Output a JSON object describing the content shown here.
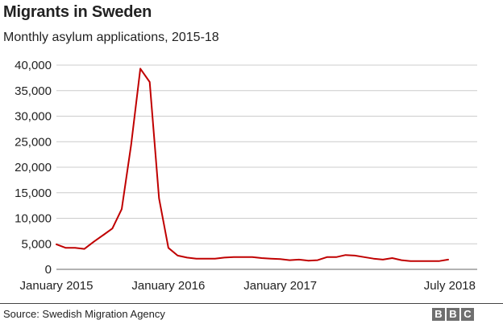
{
  "header": {
    "title": "Migrants in Sweden",
    "subtitle": "Monthly asylum applications, 2015-18"
  },
  "footer": {
    "source": "Source: Swedish Migration Agency",
    "logo_letters": [
      "B",
      "B",
      "C"
    ]
  },
  "colors": {
    "line": "#c00000",
    "grid": "#cccccc",
    "text": "#222222",
    "logo": "#6f6f6f"
  },
  "chart_data": {
    "type": "line",
    "title": "Migrants in Sweden",
    "subtitle": "Monthly asylum applications, 2015-18",
    "ylim": [
      0,
      40000
    ],
    "y_ticks": [
      0,
      5000,
      10000,
      15000,
      20000,
      25000,
      30000,
      35000,
      40000
    ],
    "y_tick_labels": [
      "0",
      "5,000",
      "10,000",
      "15,000",
      "20,000",
      "25,000",
      "30,000",
      "35,000",
      "40,000"
    ],
    "x_tick_labels": [
      {
        "x": "2015-01",
        "label": "January 2015"
      },
      {
        "x": "2016-01",
        "label": "January 2016"
      },
      {
        "x": "2017-01",
        "label": "January 2017"
      },
      {
        "x": "2018-07",
        "label": "July 2018"
      }
    ],
    "grid": true,
    "x": [
      "2015-01",
      "2015-02",
      "2015-03",
      "2015-04",
      "2015-05",
      "2015-06",
      "2015-07",
      "2015-08",
      "2015-09",
      "2015-10",
      "2015-11",
      "2015-12",
      "2016-01",
      "2016-02",
      "2016-03",
      "2016-04",
      "2016-05",
      "2016-06",
      "2016-07",
      "2016-08",
      "2016-09",
      "2016-10",
      "2016-11",
      "2016-12",
      "2017-01",
      "2017-02",
      "2017-03",
      "2017-04",
      "2017-05",
      "2017-06",
      "2017-07",
      "2017-08",
      "2017-09",
      "2017-10",
      "2017-11",
      "2017-12",
      "2018-01",
      "2018-02",
      "2018-03",
      "2018-04",
      "2018-05",
      "2018-06",
      "2018-07"
    ],
    "series": [
      {
        "values": [
          4900,
          4200,
          4200,
          4000,
          5400,
          6700,
          8000,
          11800,
          24300,
          39300,
          36700,
          13900,
          4200,
          2700,
          2300,
          2100,
          2100,
          2100,
          2300,
          2400,
          2400,
          2400,
          2200,
          2100,
          2000,
          1800,
          1900,
          1700,
          1800,
          2400,
          2400,
          2800,
          2700,
          2400,
          2100,
          1900,
          2200,
          1800,
          1600,
          1600,
          1600,
          1600,
          1900
        ]
      }
    ]
  }
}
